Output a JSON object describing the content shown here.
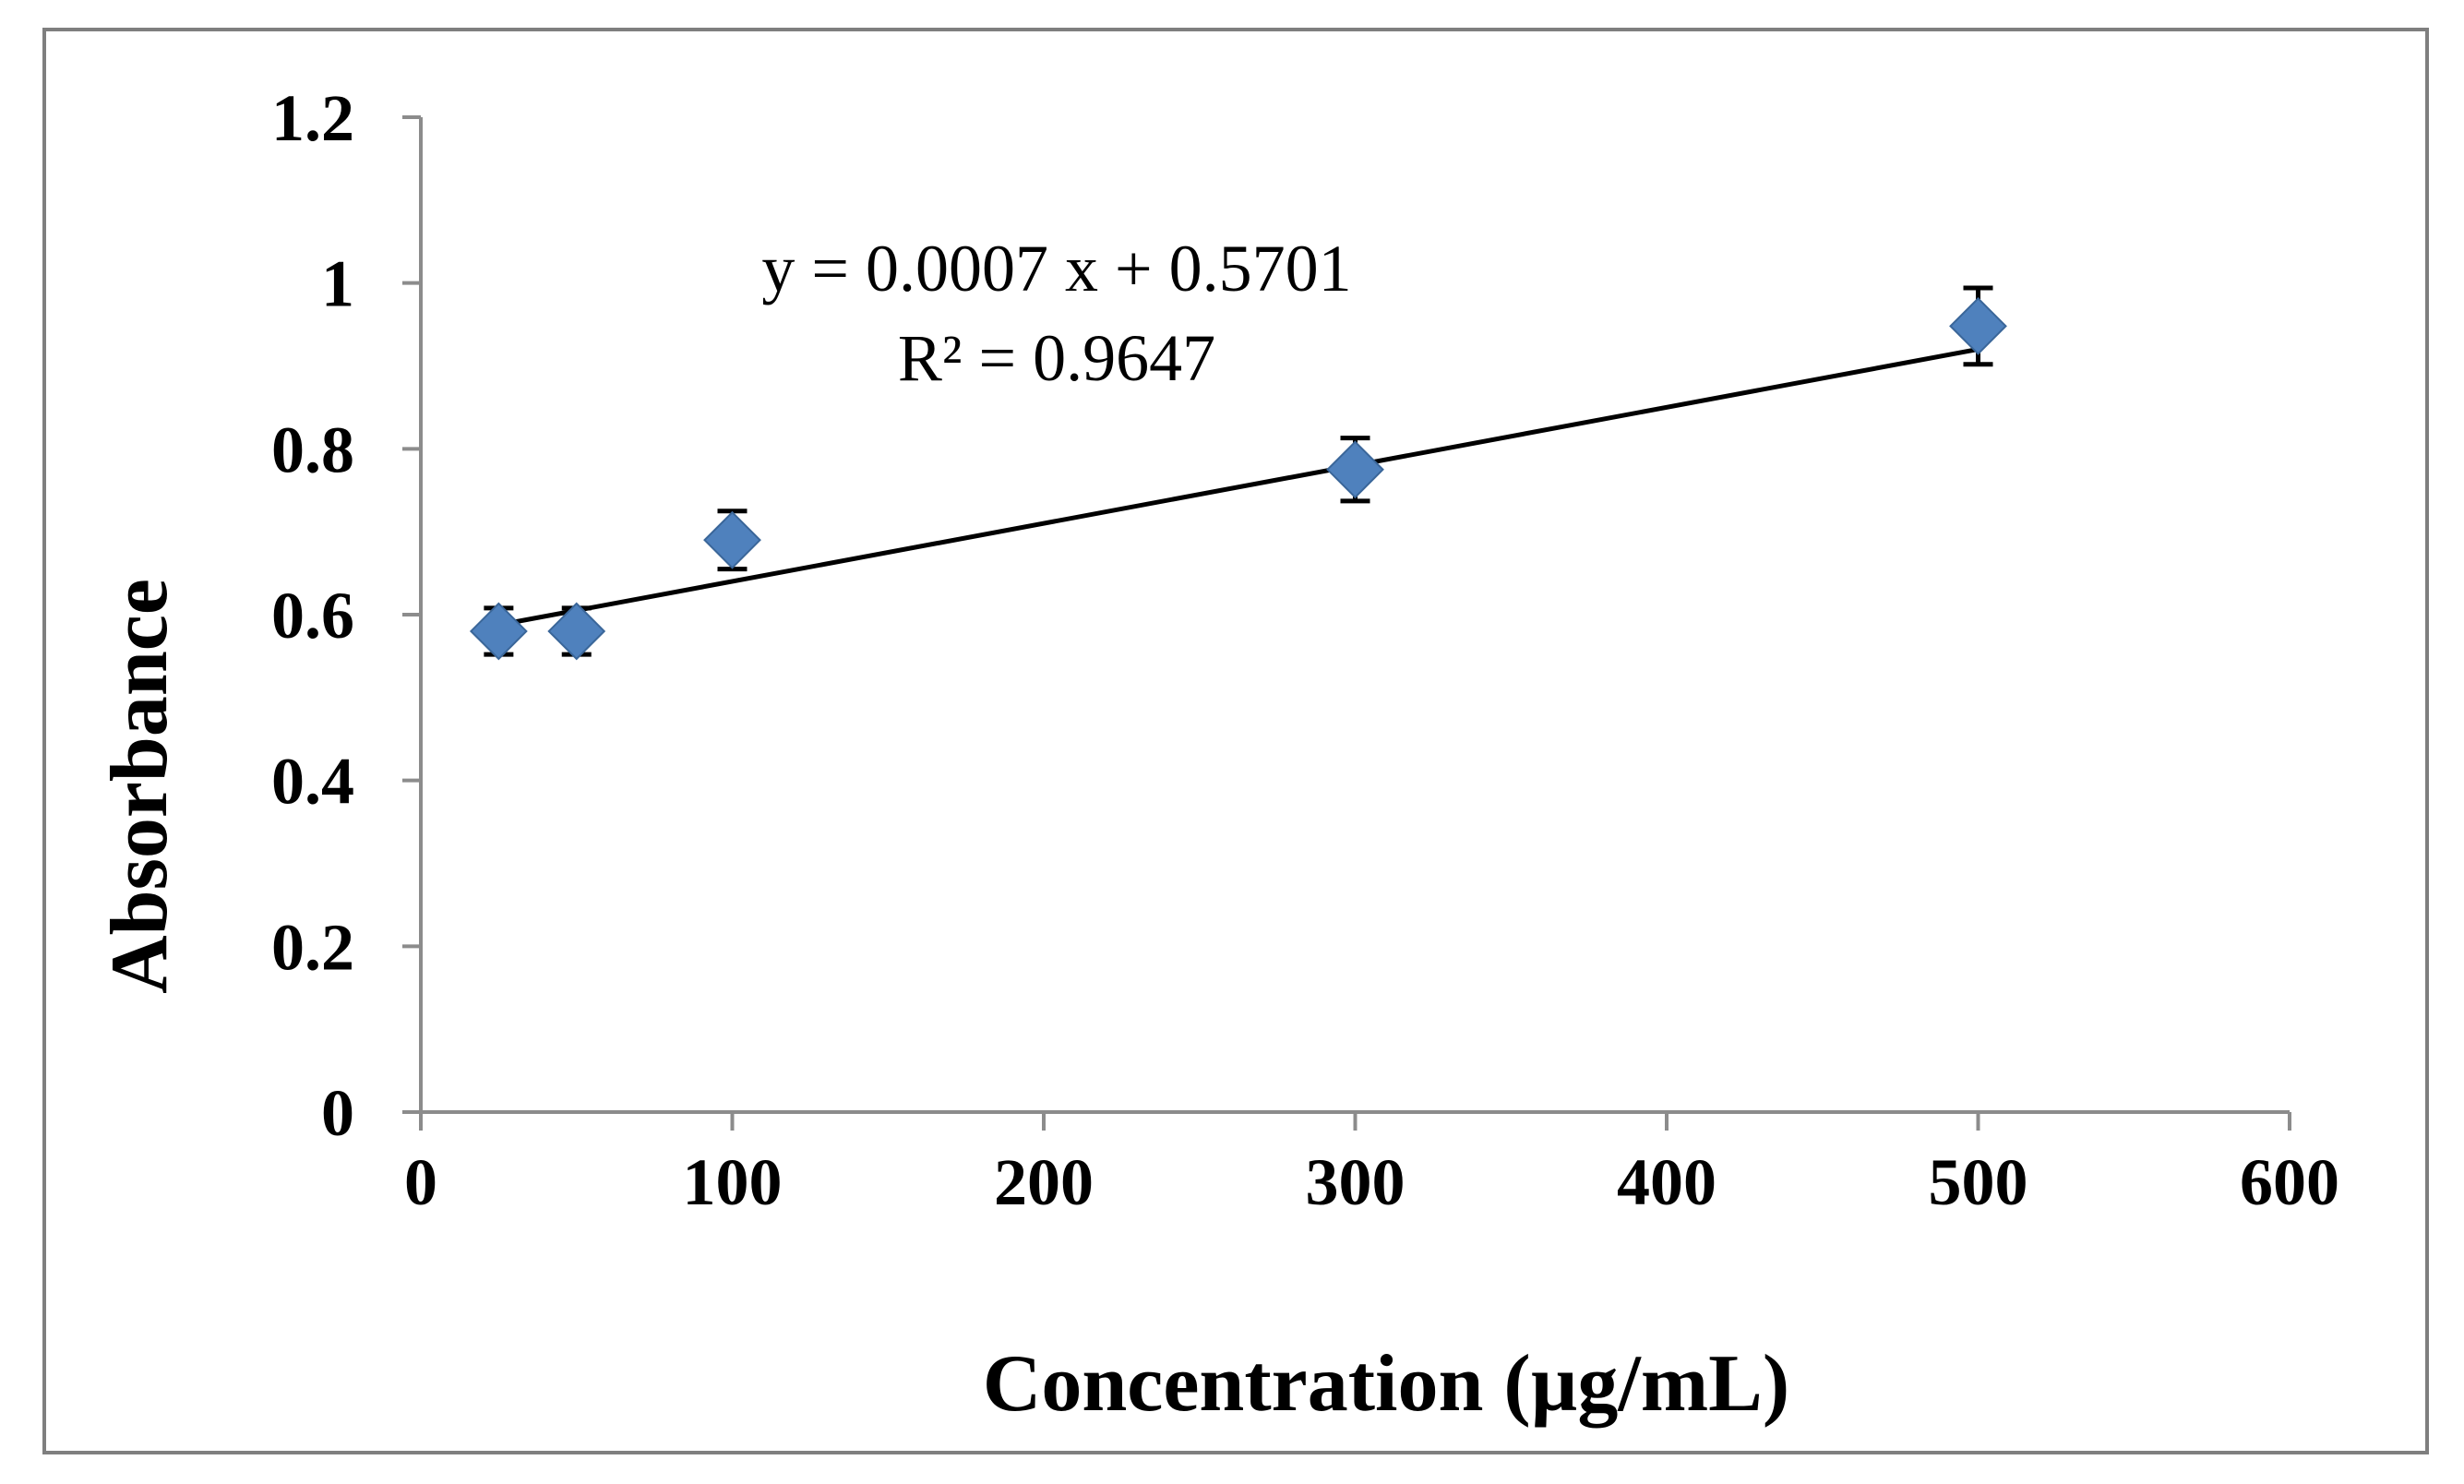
{
  "chart_data": {
    "type": "scatter",
    "title": "",
    "xlabel": "Concentration (µg/mL)",
    "ylabel": "Absorbance",
    "xlim": [
      0,
      600
    ],
    "ylim": [
      0,
      1.2
    ],
    "xticks": [
      "0",
      "100",
      "200",
      "300",
      "400",
      "500",
      "600"
    ],
    "yticks": [
      "0",
      "0.2",
      "0.4",
      "0.6",
      "0.8",
      "1",
      "1.2"
    ],
    "grid": false,
    "series": [
      {
        "name": "Absorbance",
        "marker": "diamond",
        "color": "#4f81bd",
        "x": [
          25,
          50,
          100,
          300,
          500
        ],
        "y": [
          0.58,
          0.58,
          0.69,
          0.775,
          0.948
        ],
        "error": [
          0.028,
          0.028,
          0.035,
          0.038,
          0.046
        ]
      }
    ],
    "trendline": {
      "type": "linear",
      "slope": 0.0007,
      "intercept": 0.5701,
      "x_range": [
        25,
        500
      ],
      "color": "#000000",
      "equation": "y = 0.0007 x + 0.5701",
      "r_squared": "R² = 0.9647"
    },
    "axis_color": "#8c8c8c"
  }
}
